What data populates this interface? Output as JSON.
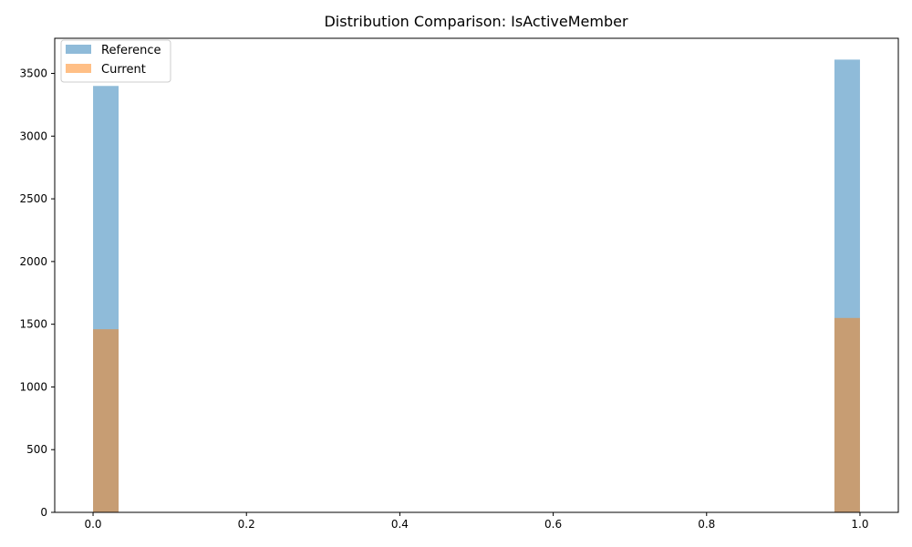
{
  "chart_data": {
    "type": "bar",
    "title": "Distribution Comparison: IsActiveMember",
    "xlabel": "",
    "ylabel": "",
    "xlim": [
      -0.05,
      1.05
    ],
    "ylim": [
      0,
      3780
    ],
    "x_ticks": [
      "0.0",
      "0.2",
      "0.4",
      "0.6",
      "0.8",
      "1.0"
    ],
    "x_tick_values": [
      0.0,
      0.2,
      0.4,
      0.6,
      0.8,
      1.0
    ],
    "y_ticks": [
      "0",
      "500",
      "1000",
      "1500",
      "2000",
      "2500",
      "3000",
      "3500"
    ],
    "y_tick_values": [
      0,
      500,
      1000,
      1500,
      2000,
      2500,
      3000,
      3500
    ],
    "bin_width": 0.0333,
    "grid": false,
    "legend_position": "top-left",
    "series": [
      {
        "name": "Reference",
        "color": "#1f77b4",
        "opacity": 0.5,
        "bins": [
          {
            "x0": 0.0,
            "x1": 0.0333,
            "value": 3400
          },
          {
            "x0": 0.9667,
            "x1": 1.0,
            "value": 3610
          }
        ]
      },
      {
        "name": "Current",
        "color": "#ff7f0e",
        "opacity": 0.5,
        "bins": [
          {
            "x0": 0.0,
            "x1": 0.0333,
            "value": 1460
          },
          {
            "x0": 0.9667,
            "x1": 1.0,
            "value": 1550
          }
        ]
      }
    ]
  }
}
